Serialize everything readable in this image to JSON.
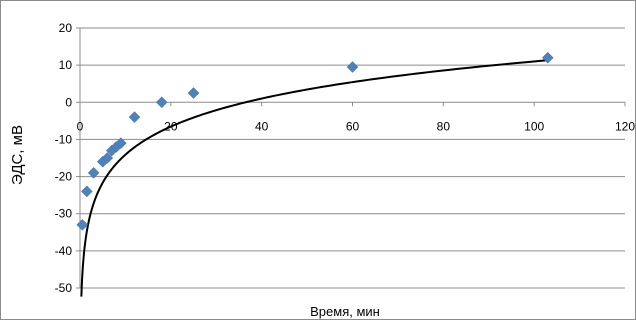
{
  "chart_data": {
    "type": "scatter",
    "xlabel": "Время, мин",
    "ylabel": "ЭДС, мВ",
    "xlim": [
      0,
      120
    ],
    "ylim": [
      -50,
      20
    ],
    "x_ticks": [
      "0",
      "20",
      "40",
      "60",
      "80",
      "100",
      "120"
    ],
    "y_ticks": [
      "20",
      "10",
      "0",
      "-10",
      "-20",
      "-30",
      "-40",
      "-50"
    ],
    "grid": "horizontal",
    "legend": "none",
    "marker_color": "#4f81bd",
    "series": [
      {
        "marker": "diamond",
        "points": [
          {
            "x": 0.5,
            "y": -33
          },
          {
            "x": 1.5,
            "y": -24
          },
          {
            "x": 3,
            "y": -19
          },
          {
            "x": 5,
            "y": -16
          },
          {
            "x": 6,
            "y": -15
          },
          {
            "x": 7,
            "y": -13
          },
          {
            "x": 8,
            "y": -12
          },
          {
            "x": 9,
            "y": -11
          },
          {
            "x": 12,
            "y": -4
          },
          {
            "x": 18,
            "y": 0
          },
          {
            "x": 25,
            "y": 2.5
          },
          {
            "x": 60,
            "y": 9.5
          },
          {
            "x": 103,
            "y": 12
          }
        ]
      }
    ],
    "trendline": {
      "type": "logarithmic",
      "color": "#000000",
      "slope": 10.9,
      "intercept": -39.2,
      "x_range": [
        0.3,
        103
      ]
    }
  }
}
